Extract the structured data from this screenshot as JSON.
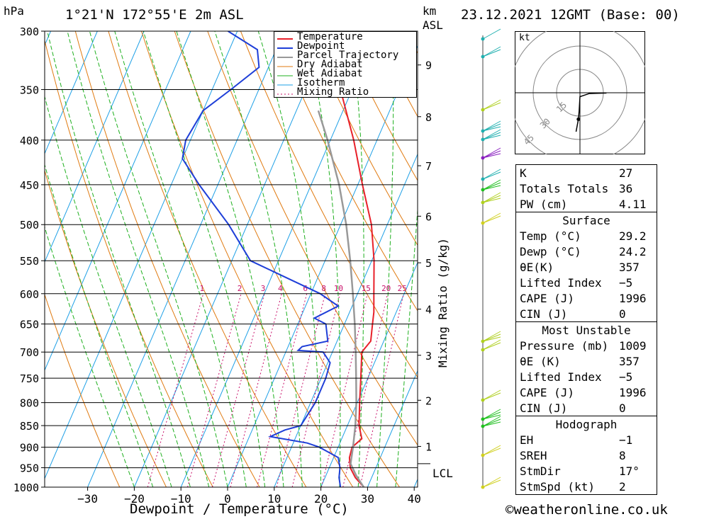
{
  "header": {
    "location": "1°21'N 172°55'E 2m ASL",
    "pressure_unit": "hPa",
    "height_unit_km": "km",
    "height_unit_asl": "ASL",
    "datetime": "23.12.2021 12GMT (Base: 00)"
  },
  "legend": [
    "Temperature",
    "Dewpoint",
    "Parcel Trajectory",
    "Dry Adiabat",
    "Wet Adiabat",
    "Isotherm",
    "Mixing Ratio"
  ],
  "xlabel": "Dewpoint / Temperature (°C)",
  "right_axis_label": "Mixing Ratio (g/kg)",
  "lcl_label": "LCL",
  "hodograph_unit": "kt",
  "hodograph_rings": [
    "15",
    "30",
    "45"
  ],
  "credit": "©weatheronline.co.uk",
  "colors": {
    "temperature": "#e8202a",
    "dewpoint": "#1f3fd8",
    "parcel": "#999999",
    "dry_adiabat": "#e07a10",
    "wet_adiabat": "#1fb01f",
    "isotherm": "#1ea0e6",
    "mixing": "#c8106a"
  },
  "chart_data": {
    "type": "skew-t",
    "pressure_levels": [
      300,
      350,
      400,
      450,
      500,
      550,
      600,
      650,
      700,
      750,
      800,
      850,
      900,
      950,
      1000
    ],
    "pressure_labels": [
      "300",
      "350",
      "400",
      "450",
      "500",
      "550",
      "600",
      "650",
      "700",
      "750",
      "800",
      "850",
      "900",
      "950",
      "1000"
    ],
    "x_ticks": [
      -30,
      -20,
      -10,
      0,
      10,
      20,
      30,
      40
    ],
    "x_tick_labels": [
      "−30",
      "−20",
      "−10",
      "0",
      "10",
      "20",
      "30",
      "40"
    ],
    "km_ticks": [
      {
        "km": "1",
        "p": 898
      },
      {
        "km": "2",
        "p": 795
      },
      {
        "km": "3",
        "p": 706
      },
      {
        "km": "4",
        "p": 625
      },
      {
        "km": "5",
        "p": 553
      },
      {
        "km": "6",
        "p": 489
      },
      {
        "km": "7",
        "p": 428
      },
      {
        "km": "8",
        "p": 376
      },
      {
        "km": "9",
        "p": 328
      }
    ],
    "mixing_ratio_labels": [
      "1",
      "2",
      "3",
      "4",
      "6",
      "8",
      "10",
      "15",
      "20",
      "25"
    ],
    "lcl_pressure": 940,
    "series": [
      {
        "name": "Temperature",
        "points": [
          [
            1000,
            29.2
          ],
          [
            975,
            26.5
          ],
          [
            950,
            24.5
          ],
          [
            925,
            23.4
          ],
          [
            900,
            23.0
          ],
          [
            880,
            24.3
          ],
          [
            850,
            22.5
          ],
          [
            800,
            20.5
          ],
          [
            750,
            18.5
          ],
          [
            700,
            16.3
          ],
          [
            680,
            17.2
          ],
          [
            650,
            16.0
          ],
          [
            630,
            15.2
          ],
          [
            600,
            13.5
          ],
          [
            550,
            10.5
          ],
          [
            500,
            6.6
          ],
          [
            450,
            1.0
          ],
          [
            400,
            -5.0
          ],
          [
            350,
            -12.5
          ],
          [
            320,
            -18.0
          ]
        ]
      },
      {
        "name": "Dewpoint",
        "points": [
          [
            1000,
            24.2
          ],
          [
            975,
            23.0
          ],
          [
            950,
            22.3
          ],
          [
            925,
            21.0
          ],
          [
            900,
            16.0
          ],
          [
            890,
            13.0
          ],
          [
            875,
            4.5
          ],
          [
            860,
            7.0
          ],
          [
            850,
            10.0
          ],
          [
            800,
            11.0
          ],
          [
            750,
            11.0
          ],
          [
            720,
            10.5
          ],
          [
            700,
            8.0
          ],
          [
            697,
            2.5
          ],
          [
            690,
            3.0
          ],
          [
            680,
            8.0
          ],
          [
            650,
            6.0
          ],
          [
            640,
            3.0
          ],
          [
            620,
            7.0
          ],
          [
            600,
            2.0
          ],
          [
            550,
            -16.0
          ],
          [
            500,
            -24.0
          ],
          [
            450,
            -34.0
          ],
          [
            420,
            -40.0
          ],
          [
            400,
            -41.0
          ],
          [
            370,
            -40.0
          ],
          [
            350,
            -36.0
          ],
          [
            330,
            -32.0
          ],
          [
            315,
            -34.0
          ],
          [
            300,
            -42.0
          ]
        ]
      },
      {
        "name": "Parcel Trajectory",
        "points": [
          [
            1000,
            29.2
          ],
          [
            970,
            26.5
          ],
          [
            940,
            24.2
          ],
          [
            900,
            23.2
          ],
          [
            850,
            21.7
          ],
          [
            800,
            19.8
          ],
          [
            750,
            17.5
          ],
          [
            700,
            15.0
          ],
          [
            650,
            12.2
          ],
          [
            600,
            9.0
          ],
          [
            550,
            5.4
          ],
          [
            500,
            1.2
          ],
          [
            450,
            -4.0
          ],
          [
            400,
            -10.6
          ],
          [
            370,
            -15.3
          ]
        ]
      }
    ],
    "hodograph": {
      "rings_kt": [
        15,
        30,
        45
      ],
      "points": [
        [
          -2.5,
          25.0
        ],
        [
          -1.0,
          17.0
        ],
        [
          -0.5,
          11.5
        ],
        [
          0.0,
          2.5
        ],
        [
          6.0,
          0.5
        ],
        [
          11.0,
          0.3
        ],
        [
          17.0,
          0.2
        ]
      ]
    }
  },
  "indices": {
    "basic": [
      [
        "K",
        "27"
      ],
      [
        "Totals Totals",
        "36"
      ],
      [
        "PW (cm)",
        "4.11"
      ]
    ],
    "surface_title": "Surface",
    "surface": [
      [
        "Temp (°C)",
        "29.2"
      ],
      [
        "Dewp (°C)",
        "24.2"
      ],
      [
        "θE(K)",
        "357"
      ],
      [
        "Lifted Index",
        "−5"
      ],
      [
        "CAPE (J)",
        "1996"
      ],
      [
        "CIN (J)",
        "0"
      ]
    ],
    "mu_title": "Most Unstable",
    "mu": [
      [
        "Pressure (mb)",
        "1009"
      ],
      [
        "θE (K)",
        "357"
      ],
      [
        "Lifted Index",
        "−5"
      ],
      [
        "CAPE (J)",
        "1996"
      ],
      [
        "CIN (J)",
        "0"
      ]
    ],
    "hodo_title": "Hodograph",
    "hodo": [
      [
        "EH",
        "−1"
      ],
      [
        "SREH",
        "8"
      ],
      [
        "StmDir",
        "17°"
      ],
      [
        "StmSpd (kt)",
        "2"
      ]
    ]
  }
}
